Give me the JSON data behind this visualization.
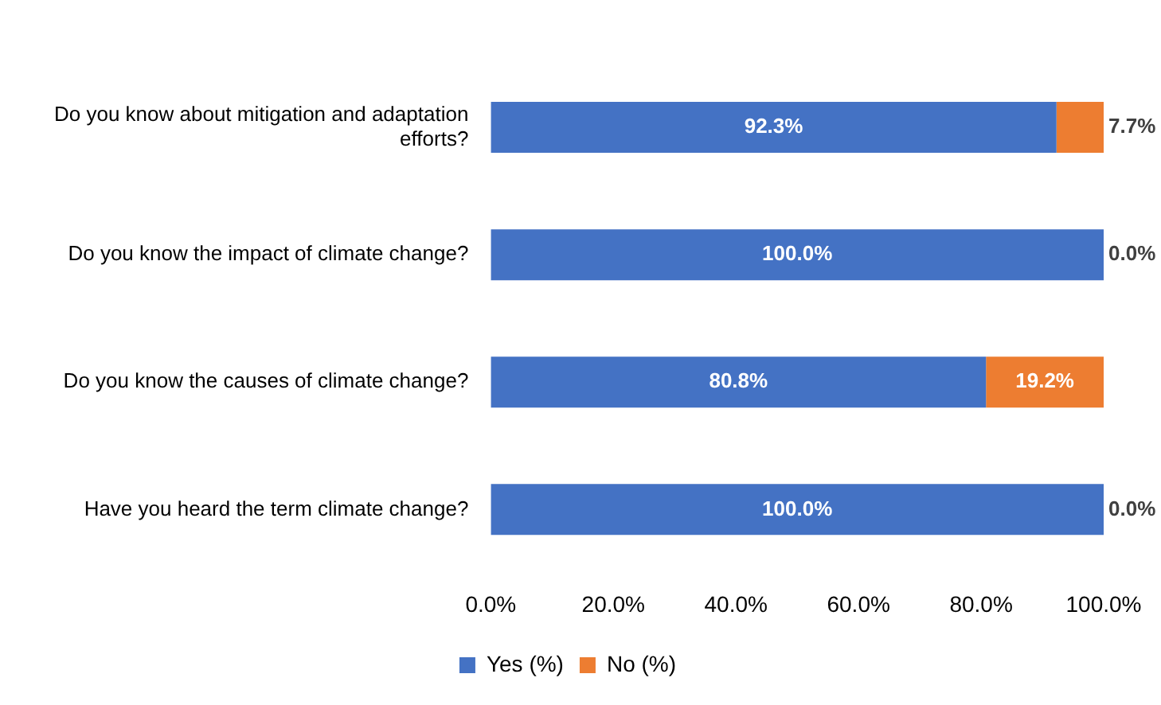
{
  "chart_data": {
    "type": "bar",
    "orientation": "horizontal",
    "stacked": true,
    "legend": "bottom",
    "categories": [
      "Do you know about mitigation and adaptation efforts?",
      "Do you know the impact of climate change?",
      "Do you know the causes of climate change?",
      "Have you heard the term climate change?"
    ],
    "series": [
      {
        "name": "Yes (%)",
        "color": "#4472c4",
        "values": [
          92.3,
          100,
          80.8,
          100
        ],
        "value_labels": [
          "92.3%",
          "100.0%",
          "80.8%",
          "100.0%"
        ]
      },
      {
        "name": "No (%)",
        "color": "#ed7d31",
        "values": [
          7.7,
          0,
          19.2,
          0
        ],
        "value_labels": [
          "7.7%",
          "0.0%",
          "19.2%",
          "0.0%"
        ]
      }
    ],
    "xlim": [
      0,
      100
    ],
    "xticks": [
      {
        "value": 0,
        "label": "0.0%"
      },
      {
        "value": 20,
        "label": "20.0%"
      },
      {
        "value": 40,
        "label": "40.0%"
      },
      {
        "value": 60,
        "label": "60.0%"
      },
      {
        "value": 80,
        "label": "80.0%"
      },
      {
        "value": 100,
        "label": "100.0%"
      }
    ]
  }
}
